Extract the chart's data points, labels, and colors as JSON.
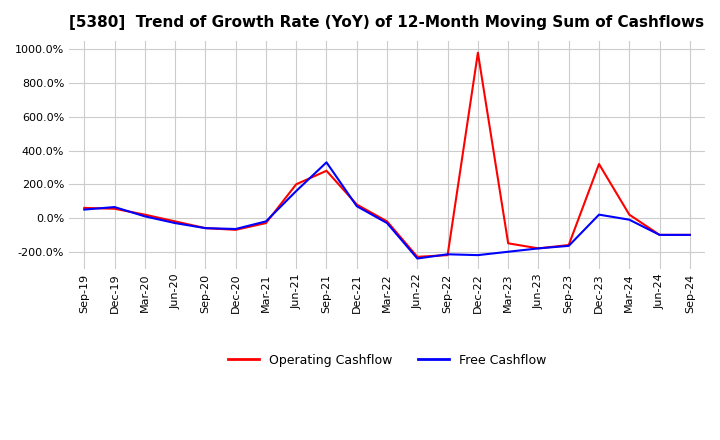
{
  "title": "[5380]  Trend of Growth Rate (YoY) of 12-Month Moving Sum of Cashflows",
  "xlabel": "",
  "ylabel": "",
  "ylim": [
    -300,
    1050
  ],
  "yticks": [
    -200,
    0,
    200,
    400,
    600,
    800,
    1000
  ],
  "ytick_labels": [
    "-200.0%",
    "0.0%",
    "200.0%",
    "400.0%",
    "600.0%",
    "800.0%",
    "1000.0%"
  ],
  "background_color": "#ffffff",
  "grid_color": "#cccccc",
  "legend": [
    "Operating Cashflow",
    "Free Cashflow"
  ],
  "legend_colors": [
    "#ff0000",
    "#0000ff"
  ],
  "x_labels": [
    "Sep-19",
    "Dec-19",
    "Mar-20",
    "Jun-20",
    "Sep-20",
    "Dec-20",
    "Mar-21",
    "Jun-21",
    "Sep-21",
    "Dec-21",
    "Mar-22",
    "Jun-22",
    "Sep-22",
    "Dec-22",
    "Mar-23",
    "Jun-23",
    "Sep-23",
    "Dec-23",
    "Mar-24",
    "Jun-24",
    "Sep-24"
  ],
  "operating_cashflow": [
    60,
    55,
    20,
    -20,
    -60,
    -70,
    -30,
    200,
    280,
    80,
    -20,
    -230,
    -220,
    980,
    -150,
    -180,
    -160,
    320,
    20,
    -100,
    -100
  ],
  "free_cashflow": [
    50,
    65,
    10,
    -30,
    -60,
    -65,
    -20,
    160,
    330,
    70,
    -30,
    -240,
    -215,
    -220,
    -200,
    -180,
    -165,
    20,
    -10,
    -100,
    -100
  ]
}
